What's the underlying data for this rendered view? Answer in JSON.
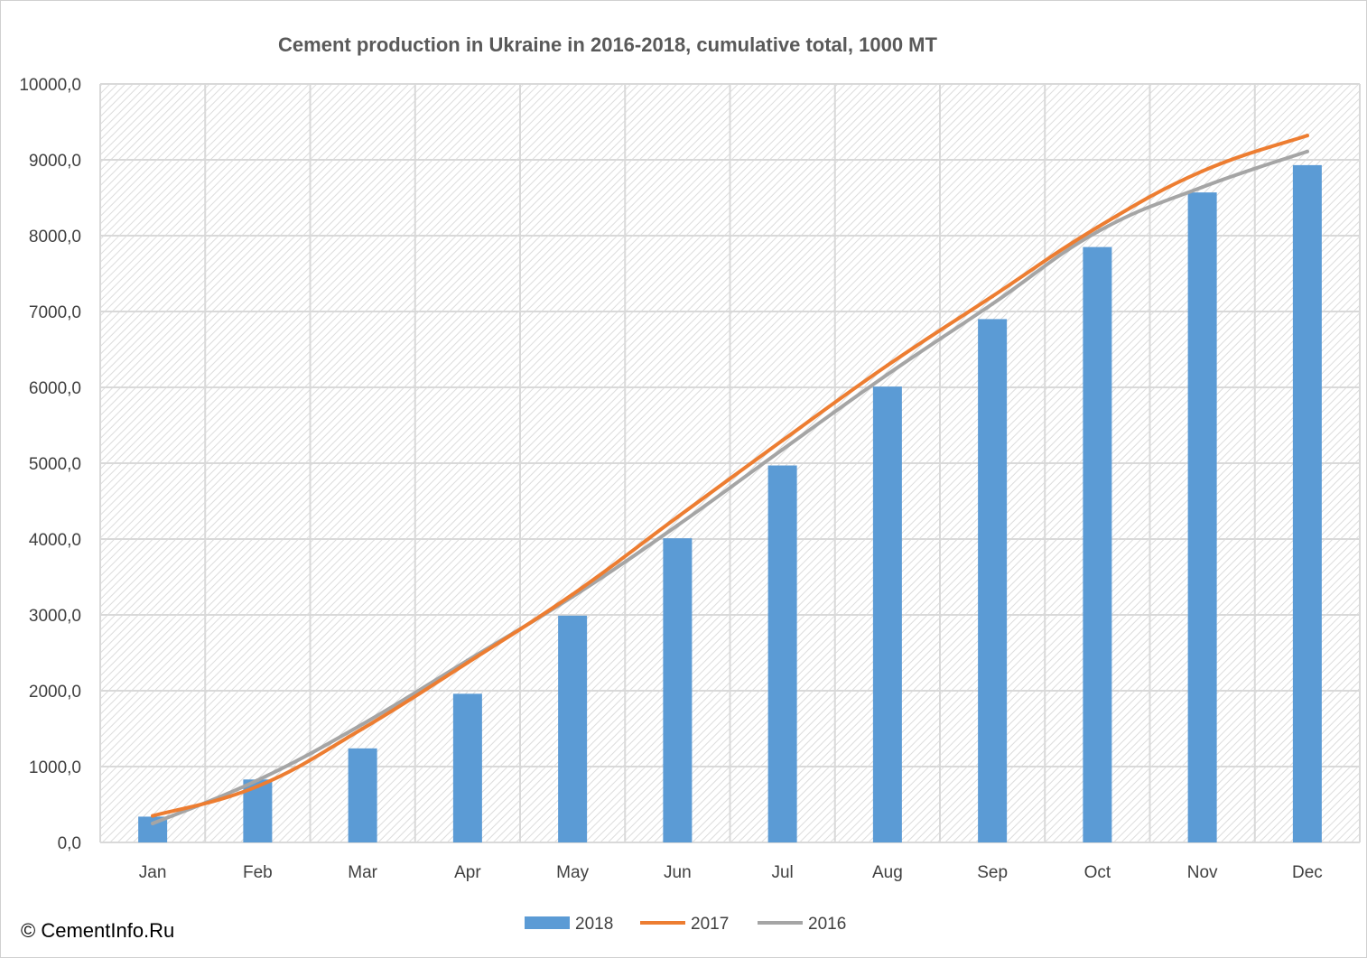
{
  "colors": {
    "bar2018": "#5b9bd5",
    "line2017": "#ed7d31",
    "line2016": "#a5a5a5",
    "grid": "#d9d9d9",
    "hatch": "#dcdcdc"
  },
  "copyright": "© CementInfo.Ru",
  "chart_data": {
    "type": "bar",
    "title": "Cement production in Ukraine in 2016-2018, cumulative total, 1000 MT",
    "xlabel": "",
    "ylabel": "",
    "ylim": [
      0,
      10000
    ],
    "y_ticks": [
      "0,0",
      "1000,0",
      "2000,0",
      "3000,0",
      "4000,0",
      "5000,0",
      "6000,0",
      "7000,0",
      "8000,0",
      "9000,0",
      "10000,0"
    ],
    "categories": [
      "Jan",
      "Feb",
      "Mar",
      "Apr",
      "May",
      "Jun",
      "Jul",
      "Aug",
      "Sep",
      "Oct",
      "Nov",
      "Dec"
    ],
    "grid": true,
    "legend_position": "bottom",
    "series": [
      {
        "name": "2018",
        "kind": "bar",
        "values": [
          340,
          830,
          1240,
          1960,
          2990,
          4010,
          4970,
          6010,
          6900,
          7850,
          8570,
          8930
        ]
      },
      {
        "name": "2017",
        "kind": "line",
        "values": [
          350,
          740,
          1500,
          2370,
          3270,
          4290,
          5300,
          6290,
          7200,
          8110,
          8850,
          9320
        ]
      },
      {
        "name": "2016",
        "kind": "line",
        "values": [
          250,
          820,
          1560,
          2400,
          3240,
          4180,
          5180,
          6170,
          7100,
          8050,
          8640,
          9110
        ]
      }
    ]
  }
}
